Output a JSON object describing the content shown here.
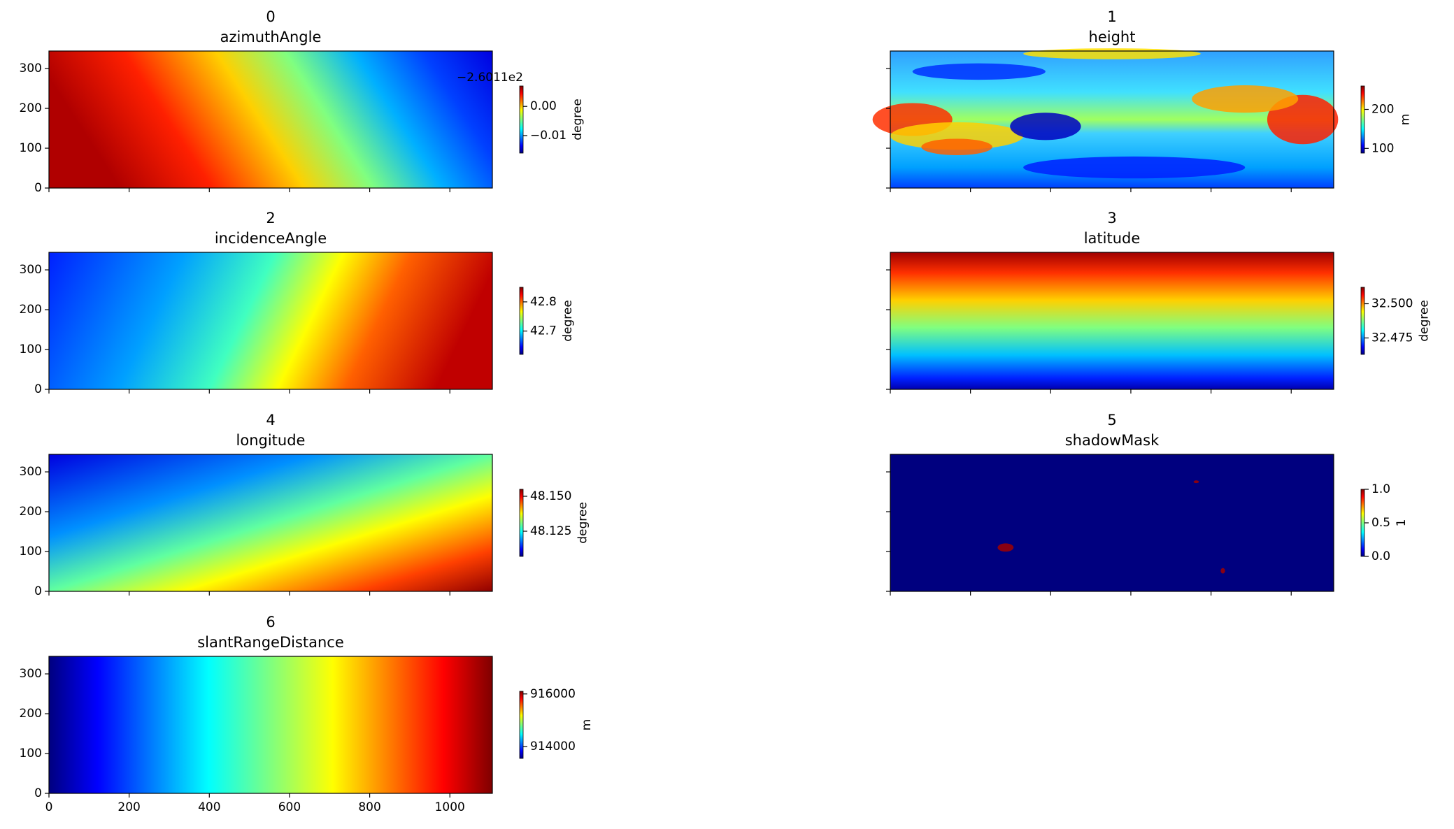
{
  "chart_data": [
    {
      "type": "heatmap",
      "title": "0",
      "subtitle": "azimuthAngle",
      "cmap": "jet",
      "xlim": [
        0,
        1106
      ],
      "ylim": [
        0,
        344
      ],
      "xticks": [
        0,
        200,
        400,
        600,
        800,
        1000
      ],
      "yticks": [
        0,
        100,
        200,
        300
      ],
      "show_xticklabels": false,
      "show_yticklabels": true,
      "colorbar": {
        "lim": [
          -0.016,
          0.007
        ],
        "ticks": [
          {
            "value": 0,
            "label": "0.00"
          },
          {
            "value": -0.01,
            "label": "−0.01"
          }
        ],
        "label": "degree",
        "offset_text": "−2.6011e2"
      }
    },
    {
      "type": "heatmap",
      "title": "1",
      "subtitle": "height",
      "cmap": "jet",
      "xlim": [
        0,
        1106
      ],
      "ylim": [
        0,
        344
      ],
      "xticks": [
        0,
        200,
        400,
        600,
        800,
        1000
      ],
      "yticks": [
        0,
        100,
        200,
        300
      ],
      "show_xticklabels": false,
      "show_yticklabels": false,
      "colorbar": {
        "lim": [
          88,
          260
        ],
        "ticks": [
          200,
          100
        ],
        "label": "m"
      }
    },
    {
      "type": "heatmap",
      "title": "2",
      "subtitle": "incidenceAngle",
      "cmap": "jet",
      "xlim": [
        0,
        1106
      ],
      "ylim": [
        0,
        344
      ],
      "xticks": [
        0,
        200,
        400,
        600,
        800,
        1000
      ],
      "yticks": [
        0,
        100,
        200,
        300
      ],
      "show_xticklabels": false,
      "show_yticklabels": true,
      "colorbar": {
        "lim": [
          42.62,
          42.85
        ],
        "ticks": [
          42.8,
          42.7
        ],
        "label": "degree"
      }
    },
    {
      "type": "heatmap",
      "title": "3",
      "subtitle": "latitude",
      "cmap": "jet",
      "xlim": [
        0,
        1106
      ],
      "ylim": [
        0,
        344
      ],
      "xticks": [
        0,
        200,
        400,
        600,
        800,
        1000
      ],
      "yticks": [
        0,
        100,
        200,
        300
      ],
      "show_xticklabels": false,
      "show_yticklabels": false,
      "colorbar": {
        "lim": [
          32.463,
          32.512
        ],
        "ticks": [
          {
            "value": 32.5,
            "label": "32.500"
          },
          32.475
        ],
        "label": "degree"
      }
    },
    {
      "type": "heatmap",
      "title": "4",
      "subtitle": "longitude",
      "cmap": "jet",
      "xlim": [
        0,
        1106
      ],
      "ylim": [
        0,
        344
      ],
      "xticks": [
        0,
        200,
        400,
        600,
        800,
        1000
      ],
      "yticks": [
        0,
        100,
        200,
        300
      ],
      "show_xticklabels": false,
      "show_yticklabels": true,
      "colorbar": {
        "lim": [
          48.107,
          48.155
        ],
        "ticks": [
          {
            "value": 48.15,
            "label": "48.150"
          },
          48.125
        ],
        "label": "degree"
      }
    },
    {
      "type": "heatmap",
      "title": "5",
      "subtitle": "shadowMask",
      "cmap": "jet",
      "xlim": [
        0,
        1106
      ],
      "ylim": [
        0,
        344
      ],
      "xticks": [
        0,
        200,
        400,
        600,
        800,
        1000
      ],
      "yticks": [
        0,
        100,
        200,
        300
      ],
      "show_xticklabels": false,
      "show_yticklabels": false,
      "colorbar": {
        "lim": [
          0,
          1
        ],
        "ticks": [
          {
            "value": 1,
            "label": "1.0"
          },
          0.5,
          {
            "value": 0,
            "label": "0.0"
          }
        ],
        "label": "1"
      }
    },
    {
      "type": "heatmap",
      "title": "6",
      "subtitle": "slantRangeDistance",
      "cmap": "jet",
      "xlim": [
        0,
        1106
      ],
      "ylim": [
        0,
        344
      ],
      "xticks": [
        0,
        200,
        400,
        600,
        800,
        1000
      ],
      "yticks": [
        0,
        100,
        200,
        300
      ],
      "show_xticklabels": true,
      "show_yticklabels": true,
      "colorbar": {
        "lim": [
          913550,
          916100
        ],
        "ticks": [
          916000,
          914000
        ],
        "label": "m"
      }
    }
  ]
}
